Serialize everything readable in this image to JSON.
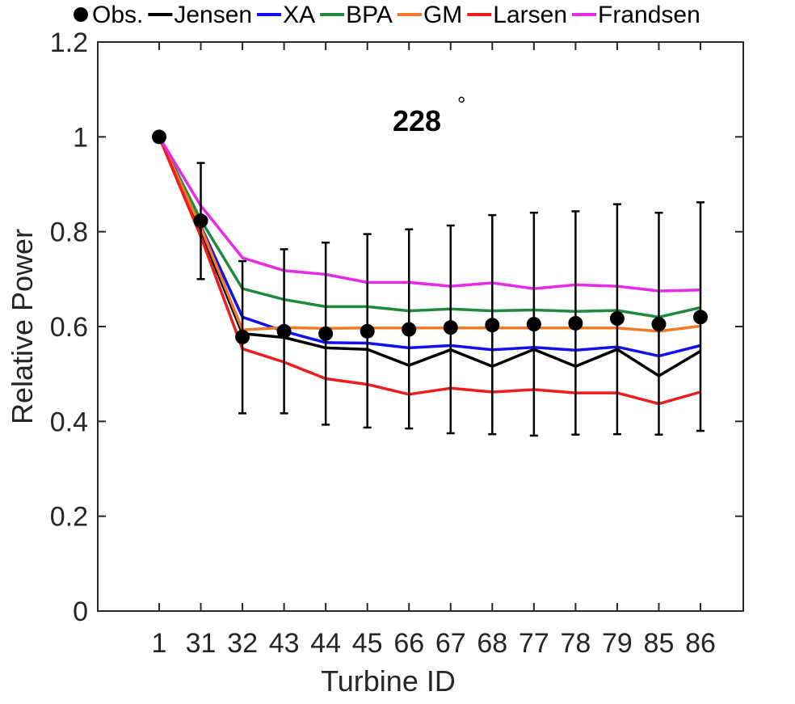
{
  "chart_data": {
    "type": "line",
    "annotation": "228",
    "annotation_suffix": "°",
    "xlabel": "Turbine ID",
    "ylabel": "Relative Power",
    "ylim": [
      0,
      1.2
    ],
    "yticks": [
      "0",
      "0.2",
      "0.4",
      "0.6",
      "0.8",
      "1",
      "1.2"
    ],
    "categories": [
      "1",
      "31",
      "32",
      "43",
      "44",
      "45",
      "66",
      "67",
      "68",
      "77",
      "78",
      "79",
      "85",
      "86"
    ],
    "legend_position": "top",
    "grid": false,
    "observations": {
      "name": "Obs.",
      "color": "#000000",
      "values": [
        1.0,
        0.823,
        0.578,
        0.59,
        0.585,
        0.59,
        0.594,
        0.598,
        0.603,
        0.605,
        0.607,
        0.617,
        0.605,
        0.62
      ],
      "error_low": [
        1.0,
        0.7,
        0.417,
        0.417,
        0.393,
        0.387,
        0.385,
        0.375,
        0.373,
        0.37,
        0.372,
        0.373,
        0.372,
        0.38
      ],
      "error_high": [
        1.0,
        0.945,
        0.738,
        0.763,
        0.777,
        0.795,
        0.805,
        0.813,
        0.835,
        0.84,
        0.843,
        0.858,
        0.84,
        0.862
      ]
    },
    "series": [
      {
        "name": "Jensen",
        "color": "#000000",
        "values": [
          1.0,
          0.8,
          0.585,
          0.577,
          0.555,
          0.552,
          0.518,
          0.551,
          0.516,
          0.552,
          0.516,
          0.552,
          0.496,
          0.548
        ]
      },
      {
        "name": "XA",
        "color": "#1010f0",
        "values": [
          1.0,
          0.812,
          0.62,
          0.59,
          0.566,
          0.565,
          0.555,
          0.56,
          0.551,
          0.556,
          0.55,
          0.557,
          0.538,
          0.56
        ]
      },
      {
        "name": "BPA",
        "color": "#1e8a3c",
        "values": [
          1.0,
          0.825,
          0.68,
          0.657,
          0.642,
          0.642,
          0.633,
          0.637,
          0.633,
          0.635,
          0.632,
          0.634,
          0.62,
          0.64
        ]
      },
      {
        "name": "GM",
        "color": "#f07a28",
        "values": [
          1.0,
          0.81,
          0.593,
          0.598,
          0.596,
          0.597,
          0.597,
          0.597,
          0.597,
          0.597,
          0.597,
          0.597,
          0.59,
          0.601
        ]
      },
      {
        "name": "Larsen",
        "color": "#ee1c1c",
        "values": [
          1.0,
          0.79,
          0.553,
          0.525,
          0.49,
          0.478,
          0.457,
          0.47,
          0.462,
          0.467,
          0.46,
          0.46,
          0.437,
          0.462
        ]
      },
      {
        "name": "Frandsen",
        "color": "#e62ae6",
        "values": [
          1.0,
          0.855,
          0.745,
          0.718,
          0.71,
          0.693,
          0.693,
          0.685,
          0.692,
          0.68,
          0.688,
          0.685,
          0.675,
          0.677
        ]
      }
    ]
  }
}
